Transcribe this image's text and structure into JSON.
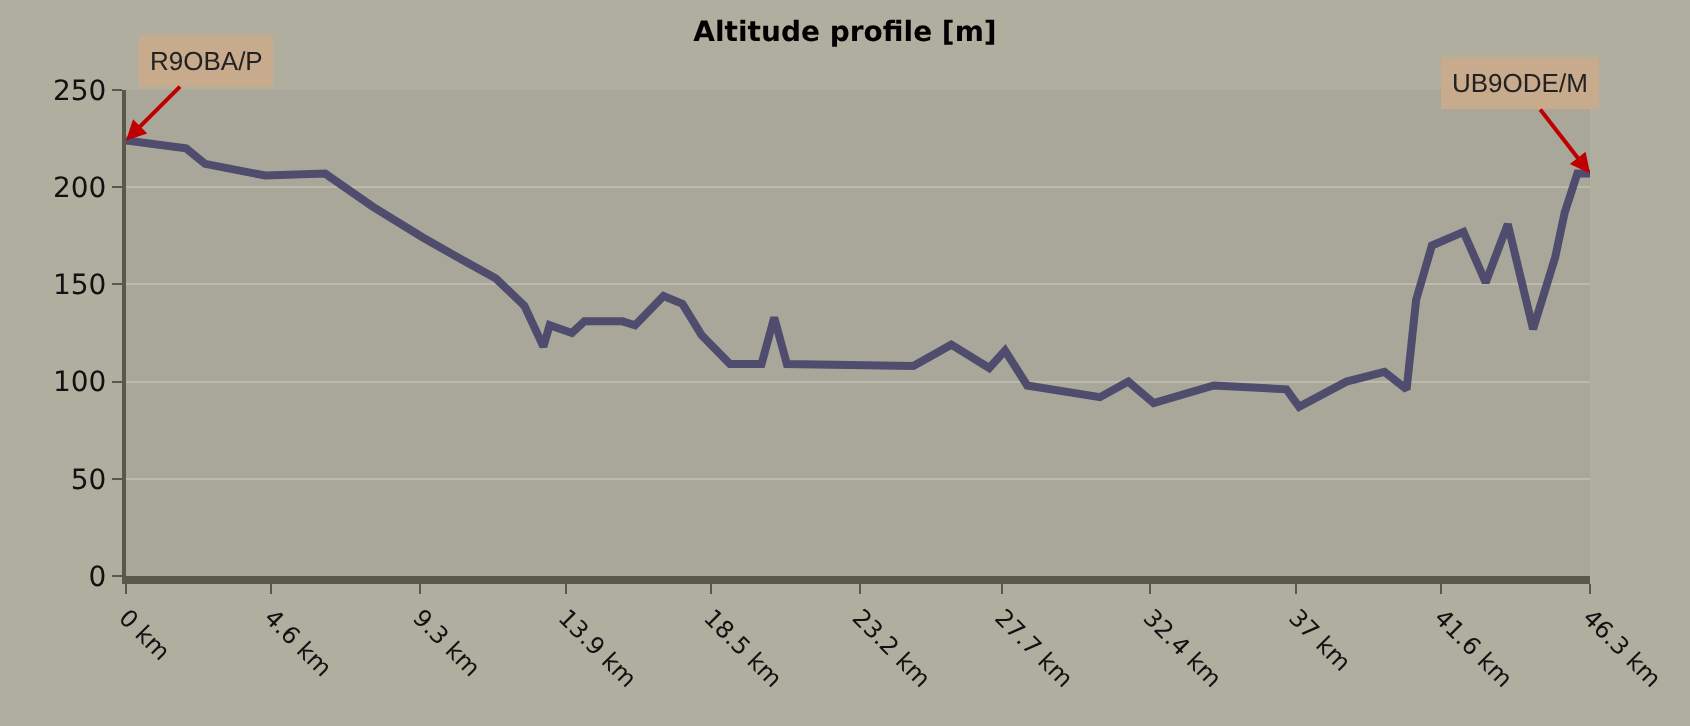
{
  "chart_data": {
    "type": "line",
    "title": "Altitude profile [m]",
    "x": [
      0,
      1.9,
      2.5,
      4.4,
      6.3,
      7.8,
      9.4,
      10.7,
      11.7,
      12.6,
      13.2,
      13.4,
      14.1,
      14.5,
      15.7,
      16.1,
      17.0,
      17.6,
      18.2,
      19.1,
      20.1,
      20.5,
      20.9,
      24.9,
      26.1,
      27.3,
      27.8,
      28.5,
      30.8,
      31.7,
      32.5,
      34.4,
      36.7,
      37.1,
      38.6,
      39.8,
      40.5,
      40.8,
      41.3,
      42.3,
      43.0,
      43.7,
      44.5,
      45.2,
      45.5,
      45.9,
      46.3
    ],
    "series": [
      {
        "color": "#4f4c6e",
        "values": [
          224,
          220,
          212,
          206,
          207,
          190,
          174,
          162,
          153,
          139,
          118,
          129,
          125,
          131,
          131,
          129,
          144,
          140,
          124,
          109,
          109,
          133,
          109,
          108,
          119,
          107,
          116,
          98,
          92,
          100,
          89,
          98,
          96,
          87,
          100,
          105,
          96,
          142,
          170,
          177,
          151,
          181,
          127,
          164,
          187,
          207,
          207
        ]
      }
    ],
    "xlim": [
      0,
      46.3
    ],
    "xticks": [
      {
        "value": 0,
        "label": "0 km"
      },
      {
        "value": 4.6,
        "label": "4.6 km"
      },
      {
        "value": 9.3,
        "label": "9.3 km"
      },
      {
        "value": 13.9,
        "label": "13.9 km"
      },
      {
        "value": 18.5,
        "label": "18.5 km"
      },
      {
        "value": 23.2,
        "label": "23.2 km"
      },
      {
        "value": 27.7,
        "label": "27.7 km"
      },
      {
        "value": 32.4,
        "label": "32.4 km"
      },
      {
        "value": 37,
        "label": "37 km"
      },
      {
        "value": 41.6,
        "label": "41.6 km"
      },
      {
        "value": 46.3,
        "label": "46.3 km"
      }
    ],
    "ylim": [
      0,
      250
    ],
    "yticks": [
      0,
      50,
      100,
      150,
      200,
      250
    ],
    "grid": "y",
    "marker": "none",
    "line_style": "solid",
    "annotations": [
      {
        "text": "R9OBA/P",
        "x": 0,
        "y": 224
      },
      {
        "text": "UB9ODE/M",
        "x": 46.3,
        "y": 207
      }
    ]
  }
}
